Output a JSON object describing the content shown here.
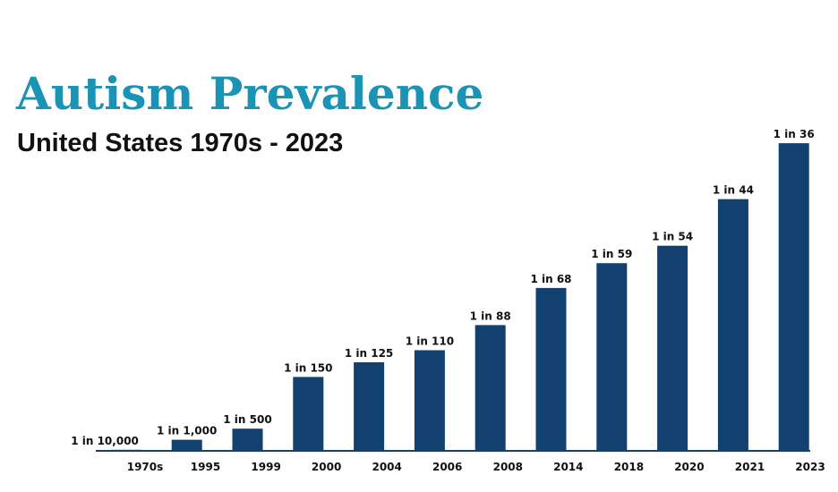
{
  "title": "Autism Prevalence",
  "subtitle": "United States 1970s - 2023",
  "colors": {
    "title": "#1a93b5",
    "bar": "#12406f",
    "axis": "#1b3f6b"
  },
  "chart_data": {
    "type": "bar",
    "title": "Autism Prevalence",
    "subtitle": "United States 1970s - 2023",
    "xlabel": "",
    "ylabel": "",
    "x_ticks": [
      "1970s",
      "1995",
      "1999",
      "2000",
      "2004",
      "2006",
      "2008",
      "2014",
      "2018",
      "2020",
      "2021",
      "2023"
    ],
    "bar_labels": [
      "1 in 10,000",
      "1 in 1,000",
      "1 in 500",
      "1 in 150",
      "1 in 125",
      "1 in 110",
      "1 in 88",
      "1 in 68",
      "1 in 59",
      "1 in 54",
      "1 in 44",
      "1 in 36"
    ],
    "values_per_1000": [
      0.1,
      1,
      2,
      6.67,
      8,
      9.09,
      11.36,
      14.71,
      16.95,
      18.52,
      22.73,
      27.78
    ],
    "ylim": [
      0,
      29
    ],
    "grid": false,
    "legend": "none"
  }
}
